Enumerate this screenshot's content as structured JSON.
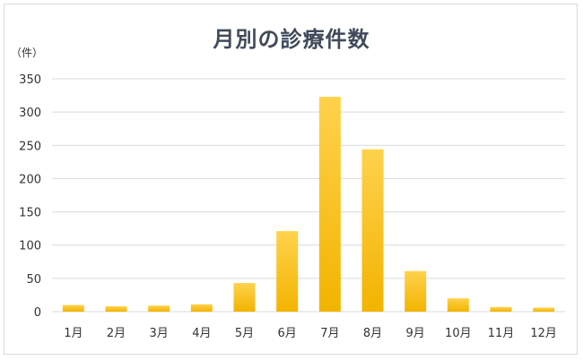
{
  "chart_data": {
    "type": "bar",
    "title": "月別の診療件数",
    "ylabel": "（件）",
    "xlabel": "",
    "categories": [
      "1月",
      "2月",
      "3月",
      "4月",
      "5月",
      "6月",
      "7月",
      "8月",
      "9月",
      "10月",
      "11月",
      "12月"
    ],
    "values": [
      10,
      8,
      9,
      11,
      43,
      121,
      323,
      244,
      61,
      20,
      7,
      6
    ],
    "ylim": [
      0,
      350
    ],
    "yticks": [
      0,
      50,
      100,
      150,
      200,
      250,
      300,
      350
    ],
    "grid": true,
    "legend": "none",
    "colors": {
      "bar_top": "#ffd24d",
      "bar_bottom": "#f2b400",
      "grid": "#d9d9d9",
      "title": "#404b5a"
    }
  }
}
